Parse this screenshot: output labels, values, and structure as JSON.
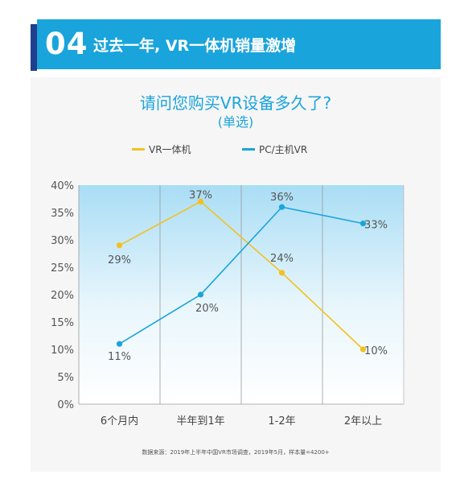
{
  "banner": {
    "number": "04",
    "title": "过去一年, VR一体机销量激增"
  },
  "colors": {
    "banner": "#1aa4dc",
    "banner_accent": "#1f3f8f",
    "title": "#1aa4dc",
    "series_all_in_one": "#f3c11e",
    "series_pc": "#1aa4dc"
  },
  "chart_data": {
    "type": "line",
    "title": "请问您购买VR设备多久了?",
    "subtitle": "(单选)",
    "categories": [
      "6个月内",
      "半年到1年",
      "1-2年",
      "2年以上"
    ],
    "series": [
      {
        "name": "VR一体机",
        "values": [
          29,
          37,
          24,
          10
        ],
        "labels": [
          "29%",
          "37%",
          "24%",
          "10%"
        ]
      },
      {
        "name": "PC/主机VR",
        "values": [
          11,
          20,
          36,
          33
        ],
        "labels": [
          "11%",
          "20%",
          "36%",
          "33%"
        ]
      }
    ],
    "ylim": [
      0,
      40
    ],
    "yticks": [
      "0%",
      "5%",
      "10%",
      "15%",
      "20%",
      "25%",
      "30%",
      "35%",
      "40%"
    ],
    "grid": "vertical",
    "legend": "top-center"
  },
  "source_note": "数据来源：2019年上半年中国VR市场调查，2019年5月，样本量=4200+"
}
